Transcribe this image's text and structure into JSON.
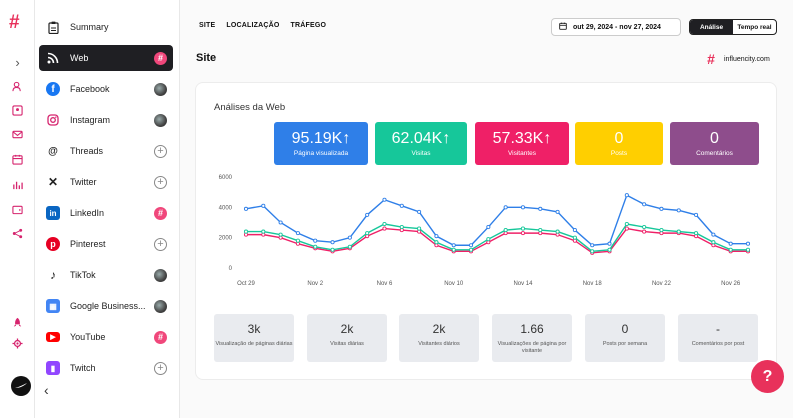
{
  "rail": {
    "icons": [
      "brand-hash-icon",
      "chevron-right-icon",
      "users-icon",
      "id-card-icon",
      "mail-icon",
      "calendar-icon",
      "bar-chart-icon",
      "wallet-icon",
      "share-icon",
      "rocket-icon",
      "settings-icon"
    ]
  },
  "sidebar": {
    "items": [
      {
        "label": "Summary",
        "icon": "clipboard-icon",
        "badge": "none"
      },
      {
        "label": "Web",
        "icon": "rss-icon",
        "badge": "pink"
      },
      {
        "label": "Facebook",
        "icon": "facebook-icon",
        "badge": "photo"
      },
      {
        "label": "Instagram",
        "icon": "instagram-icon",
        "badge": "photo"
      },
      {
        "label": "Threads",
        "icon": "threads-icon",
        "badge": "plus"
      },
      {
        "label": "Twitter",
        "icon": "x-icon",
        "badge": "plus"
      },
      {
        "label": "LinkedIn",
        "icon": "linkedin-icon",
        "badge": "pink"
      },
      {
        "label": "Pinterest",
        "icon": "pinterest-icon",
        "badge": "plus"
      },
      {
        "label": "TikTok",
        "icon": "tiktok-icon",
        "badge": "photo"
      },
      {
        "label": "Google Business...",
        "icon": "google-business-icon",
        "badge": "photo"
      },
      {
        "label": "YouTube",
        "icon": "youtube-icon",
        "badge": "pink"
      },
      {
        "label": "Twitch",
        "icon": "twitch-icon",
        "badge": "plus"
      }
    ],
    "plus_glyph": "+",
    "pink_glyph": "#",
    "collapse_glyph": "‹"
  },
  "topnav": {
    "tabs": [
      "SITE",
      "LOCALIZAÇÃO",
      "TRÁFEGO"
    ]
  },
  "date_range": "out 29, 2024 - nov 27, 2024",
  "mode_toggle": {
    "active": "Análise",
    "inactive": "Tempo real"
  },
  "section_title": "Site",
  "brand": {
    "name": "influencity.com",
    "mark": "#"
  },
  "card": {
    "title": "Análises da Web",
    "kpis": [
      {
        "value": "95.19K",
        "arrow": "↑",
        "label": "Página visualizada",
        "color": "#2f7fe8"
      },
      {
        "value": "62.04K",
        "arrow": "↑",
        "label": "Visitas",
        "color": "#16c79a"
      },
      {
        "value": "57.33K",
        "arrow": "↑",
        "label": "Visitantes",
        "color": "#ef2067"
      },
      {
        "value": "0",
        "arrow": "",
        "label": "Posts",
        "color": "#ffcf00"
      },
      {
        "value": "0",
        "arrow": "",
        "label": "Comentários",
        "color": "#8e4d8c"
      }
    ],
    "stats": [
      {
        "value": "3k",
        "label": "Visualização de páginas diárias"
      },
      {
        "value": "2k",
        "label": "Visitas diárias"
      },
      {
        "value": "2k",
        "label": "Visitantes diários"
      },
      {
        "value": "1.66",
        "label": "Visualizações de página por visitante"
      },
      {
        "value": "0",
        "label": "Posts por semana"
      },
      {
        "value": "-",
        "label": "Comentários por post"
      }
    ]
  },
  "chart_data": {
    "type": "line",
    "x": [
      "Oct 29",
      "Oct 30",
      "Oct 31",
      "Nov 1",
      "Nov 2",
      "Nov 3",
      "Nov 4",
      "Nov 5",
      "Nov 6",
      "Nov 7",
      "Nov 8",
      "Nov 9",
      "Nov 10",
      "Nov 11",
      "Nov 12",
      "Nov 13",
      "Nov 14",
      "Nov 15",
      "Nov 16",
      "Nov 17",
      "Nov 18",
      "Nov 19",
      "Nov 20",
      "Nov 21",
      "Nov 22",
      "Nov 23",
      "Nov 24",
      "Nov 25",
      "Nov 26",
      "Nov 27"
    ],
    "xticks": [
      "Oct 29",
      "Nov 2",
      "Nov 6",
      "Nov 10",
      "Nov 14",
      "Nov 18",
      "Nov 22",
      "Nov 26"
    ],
    "yticks": [
      0,
      2000,
      4000,
      6000
    ],
    "ylim": [
      0,
      6000
    ],
    "series": [
      {
        "name": "Página visualizada",
        "color": "#2f7fe8",
        "values": [
          3900,
          4100,
          3000,
          2300,
          1800,
          1700,
          2000,
          3500,
          4500,
          4100,
          3700,
          2100,
          1500,
          1500,
          2700,
          4000,
          4000,
          3900,
          3700,
          2500,
          1500,
          1600,
          4800,
          4200,
          3900,
          3800,
          3500,
          2200,
          1600,
          1600
        ]
      },
      {
        "name": "Visitas",
        "color": "#16c79a",
        "values": [
          2400,
          2400,
          2200,
          1800,
          1400,
          1200,
          1400,
          2300,
          2900,
          2700,
          2600,
          1700,
          1200,
          1200,
          1900,
          2500,
          2600,
          2500,
          2400,
          2000,
          1100,
          1200,
          2900,
          2700,
          2500,
          2400,
          2300,
          1700,
          1200,
          1200
        ]
      },
      {
        "name": "Visitantes",
        "color": "#ef2067",
        "values": [
          2200,
          2200,
          2000,
          1600,
          1300,
          1100,
          1300,
          2100,
          2600,
          2500,
          2400,
          1500,
          1100,
          1100,
          1700,
          2300,
          2300,
          2300,
          2200,
          1800,
          1000,
          1100,
          2600,
          2400,
          2300,
          2300,
          2100,
          1500,
          1100,
          1100
        ]
      }
    ]
  },
  "help_glyph": "?"
}
